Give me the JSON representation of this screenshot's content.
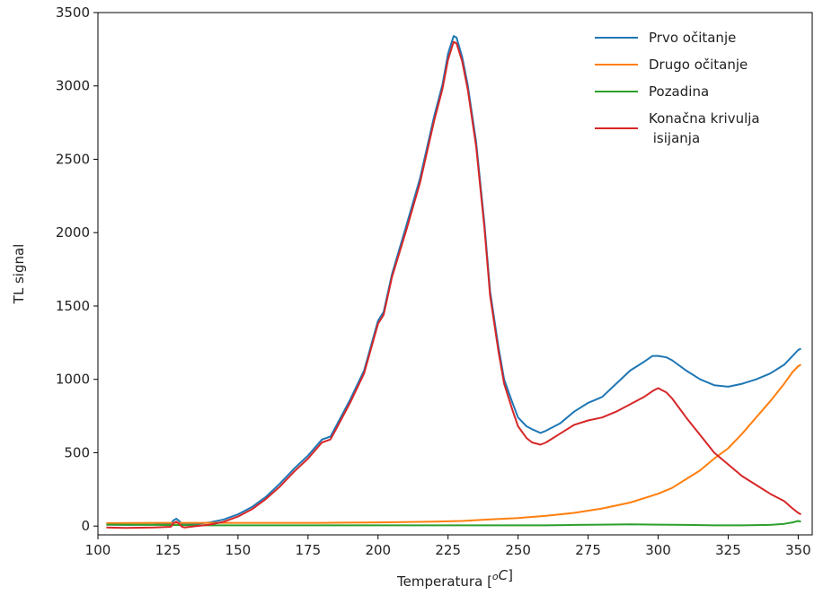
{
  "chart_data": {
    "type": "line",
    "title": "",
    "xlabel": "Temperatura [",
    "xlabel_sup": "o",
    "xlabel_unit": "C]",
    "ylabel": "TL signal",
    "xlim": [
      100,
      355
    ],
    "ylim": [
      -60,
      3500
    ],
    "xticks": [
      100,
      125,
      150,
      175,
      200,
      225,
      250,
      275,
      300,
      325,
      350
    ],
    "yticks": [
      0,
      500,
      1000,
      1500,
      2000,
      2500,
      3000,
      3500
    ],
    "grid": false,
    "legend_position": "top-right",
    "series": [
      {
        "name": "Prvo očitanje",
        "color": "#1f77b4",
        "x": [
          103,
          110,
          120,
          126,
          127,
          128,
          129,
          130,
          131,
          135,
          140,
          145,
          150,
          155,
          160,
          165,
          170,
          175,
          180,
          183,
          185,
          190,
          195,
          200,
          202,
          205,
          210,
          215,
          220,
          223,
          225,
          227,
          228,
          230,
          232,
          235,
          238,
          240,
          243,
          245,
          248,
          250,
          253,
          255,
          258,
          260,
          265,
          270,
          275,
          280,
          285,
          290,
          295,
          298,
          300,
          303,
          305,
          310,
          315,
          320,
          325,
          330,
          335,
          340,
          345,
          348,
          350,
          351
        ],
        "y": [
          10,
          8,
          10,
          15,
          40,
          50,
          35,
          15,
          10,
          15,
          25,
          45,
          80,
          130,
          200,
          290,
          390,
          480,
          590,
          610,
          680,
          860,
          1060,
          1400,
          1460,
          1720,
          2040,
          2370,
          2790,
          3010,
          3220,
          3340,
          3330,
          3200,
          3010,
          2620,
          2060,
          1600,
          1220,
          1000,
          840,
          740,
          680,
          660,
          635,
          650,
          700,
          780,
          840,
          880,
          970,
          1060,
          1120,
          1160,
          1160,
          1150,
          1130,
          1060,
          1000,
          960,
          950,
          970,
          1000,
          1040,
          1100,
          1160,
          1200,
          1210
        ]
      },
      {
        "name": "Drugo očitanje",
        "color": "#ff7f0e",
        "x": [
          103,
          120,
          140,
          160,
          180,
          200,
          220,
          230,
          240,
          250,
          260,
          270,
          280,
          290,
          300,
          305,
          310,
          315,
          320,
          325,
          330,
          335,
          340,
          345,
          348,
          350,
          351
        ],
        "y": [
          20,
          22,
          22,
          22,
          22,
          25,
          30,
          35,
          45,
          55,
          70,
          90,
          120,
          160,
          220,
          260,
          320,
          380,
          460,
          530,
          630,
          740,
          850,
          970,
          1050,
          1090,
          1100
        ]
      },
      {
        "name": "Pozadina",
        "color": "#2ca02c",
        "x": [
          103,
          120,
          140,
          160,
          180,
          200,
          220,
          240,
          260,
          270,
          280,
          290,
          300,
          310,
          320,
          330,
          340,
          345,
          348,
          350,
          351
        ],
        "y": [
          10,
          8,
          5,
          5,
          5,
          5,
          5,
          5,
          5,
          8,
          10,
          12,
          10,
          8,
          5,
          5,
          8,
          15,
          25,
          35,
          30
        ]
      },
      {
        "name": "Konačna krivulja\n isijanja",
        "color": "#d62728",
        "x": [
          103,
          110,
          120,
          126,
          127,
          128,
          129,
          130,
          131,
          135,
          140,
          145,
          150,
          155,
          160,
          165,
          170,
          175,
          180,
          183,
          185,
          190,
          195,
          200,
          202,
          205,
          210,
          215,
          220,
          223,
          225,
          227,
          228,
          230,
          232,
          235,
          238,
          240,
          243,
          245,
          248,
          250,
          253,
          255,
          258,
          260,
          265,
          270,
          275,
          280,
          285,
          290,
          295,
          298,
          300,
          303,
          305,
          310,
          315,
          320,
          325,
          330,
          335,
          340,
          345,
          348,
          350,
          351
        ],
        "y": [
          -10,
          -12,
          -10,
          -5,
          20,
          30,
          15,
          -5,
          -10,
          0,
          10,
          30,
          65,
          115,
          185,
          270,
          370,
          460,
          570,
          590,
          660,
          840,
          1040,
          1380,
          1440,
          1700,
          2010,
          2340,
          2760,
          2980,
          3180,
          3300,
          3290,
          3170,
          2980,
          2590,
          2030,
          1570,
          1190,
          970,
          790,
          680,
          600,
          570,
          555,
          570,
          630,
          690,
          720,
          740,
          780,
          830,
          880,
          920,
          940,
          910,
          870,
          740,
          620,
          500,
          420,
          340,
          280,
          220,
          170,
          120,
          90,
          80
        ]
      }
    ]
  }
}
